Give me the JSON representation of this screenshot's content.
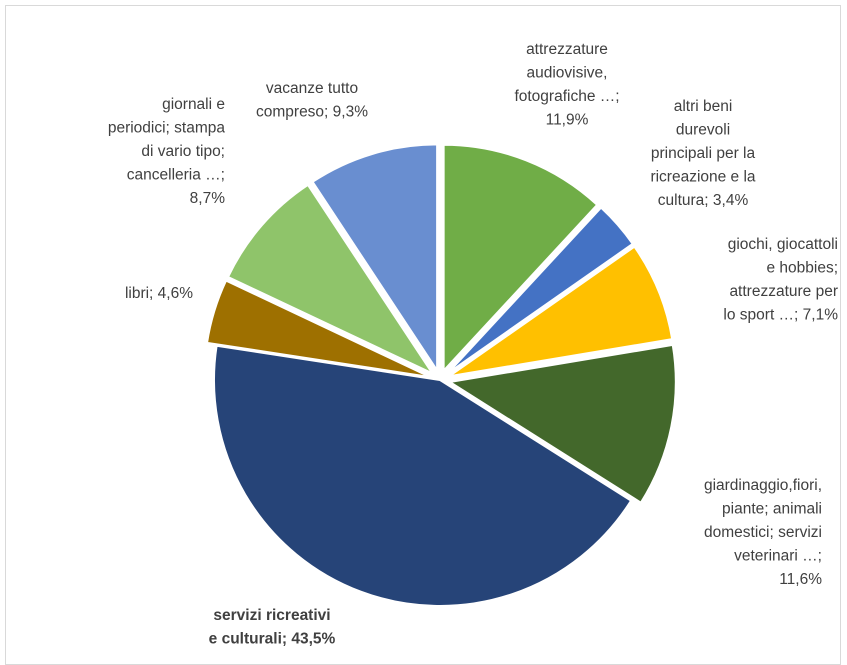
{
  "chart_data": {
    "type": "pie",
    "title": "",
    "slices": [
      {
        "label": "attrezzature audiovisive, fotografiche …",
        "value": 11.9,
        "value_label": "11,9%",
        "color": "#70ad47"
      },
      {
        "label": "altri beni durevoli principali per la ricreazione e la cultura",
        "value": 3.4,
        "value_label": "3,4%",
        "color": "#4472c4"
      },
      {
        "label": "giochi, giocattoli e hobbies; attrezzature per lo sport …",
        "value": 7.1,
        "value_label": "7,1%",
        "color": "#ffc000"
      },
      {
        "label": "giardinaggio,fiori, piante; animali domestici; servizi veterinari …",
        "value": 11.6,
        "value_label": "11,6%",
        "color": "#43682b"
      },
      {
        "label": "servizi ricreativi e culturali",
        "value": 43.5,
        "value_label": "43,5%",
        "color": "#264478"
      },
      {
        "label": "libri",
        "value": 4.6,
        "value_label": "4,6%",
        "color": "#9e7000"
      },
      {
        "label": "giornali e periodici; stampa di vario tipo; cancelleria …",
        "value": 8.7,
        "value_label": "8,7%",
        "color": "#8fc46a"
      },
      {
        "label": "vacanze tutto compreso",
        "value": 9.3,
        "value_label": "9,3%",
        "color": "#698ed0"
      }
    ],
    "labels": [
      [
        "attrezzature",
        "audiovisive,",
        "fotografiche …;",
        "11,9%"
      ],
      [
        "altri beni",
        "durevoli",
        "principali per la",
        "ricreazione e la",
        "cultura; 3,4%"
      ],
      [
        "giochi, giocattoli",
        "e hobbies;",
        "attrezzature per",
        "lo sport …; 7,1%"
      ],
      [
        "giardinaggio,fiori,",
        "piante; animali",
        "domestici; servizi",
        "veterinari …;",
        "11,6%"
      ],
      [
        "servizi ricreativi",
        "e culturali; 43,5%"
      ],
      [
        "libri; 4,6%"
      ],
      [
        "giornali e",
        "periodici; stampa",
        "di vario tipo;",
        "cancelleria …;",
        "8,7%"
      ],
      [
        "vacanze tutto",
        "compreso; 9,3%"
      ]
    ]
  }
}
